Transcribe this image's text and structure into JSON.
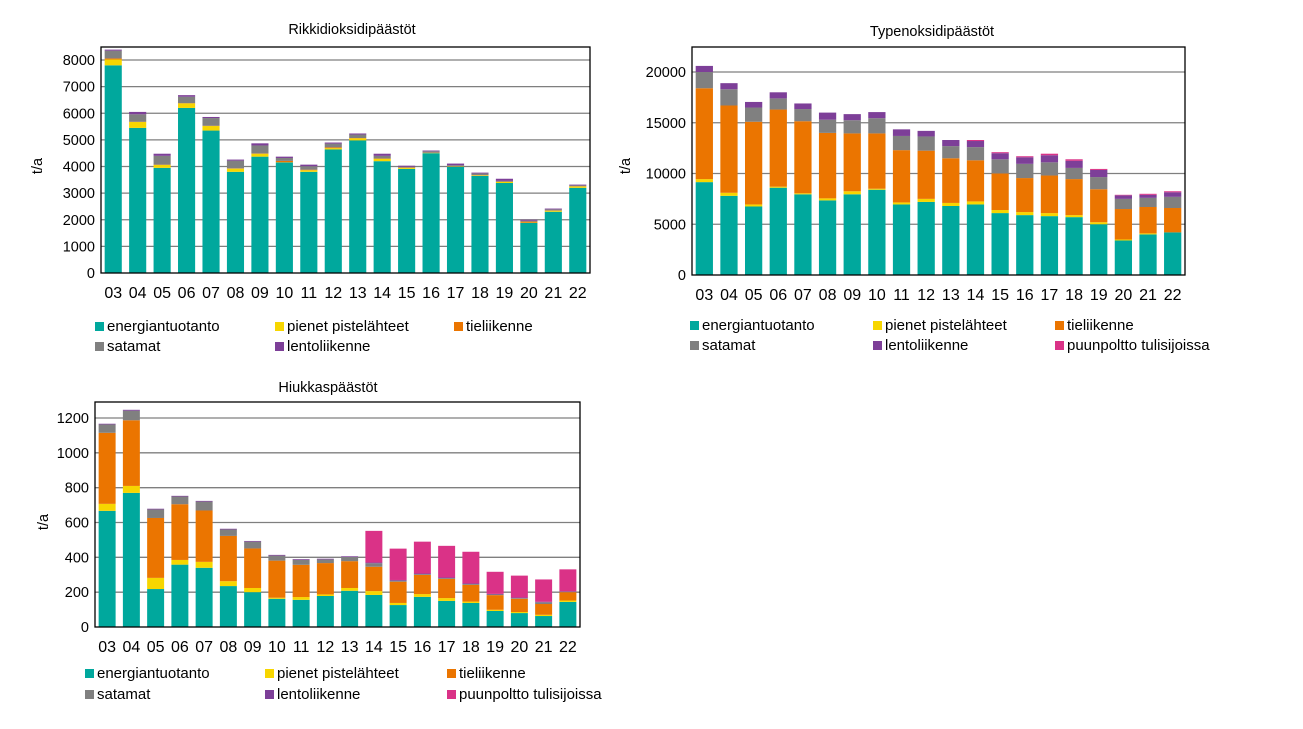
{
  "colors": {
    "energiantuotanto": "#00A89D",
    "pienet_pistelahteet": "#F7D600",
    "tieliikenne": "#EB7500",
    "satamat": "#808080",
    "lentoliikenne": "#7D3F98",
    "puunpoltto": "#DA3287"
  },
  "chart_data": [
    {
      "id": "so2",
      "type": "bar",
      "stacked": true,
      "title": "Rikkidioksidipäästöt",
      "xlabel": "",
      "ylabel": "t/a",
      "ylim": [
        0,
        8400
      ],
      "yticks": [
        0,
        1000,
        2000,
        3000,
        4000,
        5000,
        6000,
        7000,
        8000
      ],
      "grid": true,
      "legend": "bottom",
      "categories": [
        "03",
        "04",
        "05",
        "06",
        "07",
        "08",
        "09",
        "10",
        "11",
        "12",
        "13",
        "14",
        "15",
        "16",
        "17",
        "18",
        "19",
        "20",
        "21",
        "22"
      ],
      "series": [
        {
          "name": "energiantuotanto",
          "color_key": "energiantuotanto",
          "values": [
            7800,
            5450,
            3950,
            6200,
            5350,
            3800,
            4370,
            4150,
            3800,
            4640,
            4980,
            4200,
            3910,
            4500,
            3990,
            3650,
            3380,
            1880,
            2300,
            3200
          ]
        },
        {
          "name": "pienet pistelähteet",
          "color_key": "pienet_pistelahteet",
          "values": [
            220,
            220,
            110,
            170,
            170,
            120,
            110,
            10,
            60,
            50,
            80,
            90,
            40,
            10,
            10,
            20,
            40,
            10,
            40,
            50
          ]
        },
        {
          "name": "tieliikenne",
          "color_key": "tieliikenne",
          "values": [
            40,
            10,
            10,
            10,
            10,
            10,
            10,
            50,
            20,
            30,
            10,
            10,
            10,
            10,
            10,
            10,
            10,
            40,
            10,
            10
          ]
        },
        {
          "name": "satamat",
          "color_key": "satamat",
          "values": [
            290,
            280,
            330,
            240,
            290,
            290,
            300,
            110,
            130,
            140,
            130,
            100,
            30,
            50,
            40,
            60,
            30,
            30,
            40,
            30
          ]
        },
        {
          "name": "lentoliikenne",
          "color_key": "lentoliikenne",
          "values": [
            40,
            90,
            80,
            60,
            40,
            40,
            80,
            50,
            60,
            40,
            40,
            80,
            40,
            30,
            60,
            30,
            80,
            40,
            30,
            30
          ]
        }
      ]
    },
    {
      "id": "nox",
      "type": "bar",
      "stacked": true,
      "title": "Typenoksidipäästöt",
      "xlabel": "",
      "ylabel": "t/a",
      "ylim": [
        0,
        22000
      ],
      "yticks": [
        0,
        5000,
        10000,
        15000,
        20000
      ],
      "grid": true,
      "legend": "bottom",
      "categories": [
        "03",
        "04",
        "05",
        "06",
        "07",
        "08",
        "09",
        "10",
        "11",
        "12",
        "13",
        "14",
        "15",
        "16",
        "17",
        "18",
        "19",
        "20",
        "21",
        "22"
      ],
      "series": [
        {
          "name": "energiantuotanto",
          "color_key": "energiantuotanto",
          "values": [
            9150,
            7800,
            6750,
            8600,
            7950,
            7350,
            7950,
            8400,
            6950,
            7200,
            6800,
            6950,
            6100,
            5900,
            5800,
            5700,
            5000,
            3400,
            4000,
            4200
          ]
        },
        {
          "name": "pienet pistelähteet",
          "color_key": "pienet_pistelahteet",
          "values": [
            300,
            300,
            200,
            100,
            100,
            200,
            300,
            100,
            200,
            300,
            300,
            300,
            300,
            300,
            300,
            200,
            200,
            100,
            100,
            0
          ]
        },
        {
          "name": "tieliikenne",
          "color_key": "tieliikenne",
          "values": [
            8950,
            8600,
            8150,
            7600,
            7100,
            6450,
            5700,
            5450,
            5150,
            4750,
            4400,
            4050,
            3600,
            3350,
            3700,
            3550,
            3250,
            3000,
            2600,
            2400
          ]
        },
        {
          "name": "satamat",
          "color_key": "satamat",
          "values": [
            1600,
            1600,
            1400,
            1100,
            1200,
            1300,
            1300,
            1500,
            1400,
            1400,
            1200,
            1300,
            1400,
            1400,
            1300,
            1100,
            1200,
            1000,
            900,
            1100
          ]
        },
        {
          "name": "lentoliikenne",
          "color_key": "lentoliikenne",
          "values": [
            600,
            600,
            550,
            600,
            550,
            700,
            600,
            600,
            650,
            550,
            600,
            600,
            600,
            650,
            700,
            700,
            700,
            350,
            300,
            450
          ]
        },
        {
          "name": "puunpoltto tulisijoissa",
          "color_key": "puunpoltto",
          "values": [
            0,
            0,
            0,
            0,
            0,
            0,
            0,
            0,
            0,
            0,
            0,
            100,
            100,
            100,
            150,
            150,
            100,
            50,
            100,
            100
          ]
        }
      ]
    },
    {
      "id": "pm",
      "type": "bar",
      "stacked": true,
      "title": "Hiukkaspäästöt",
      "xlabel": "",
      "ylabel": "t/a",
      "ylim": [
        0,
        1300
      ],
      "yticks": [
        0,
        200,
        400,
        600,
        800,
        1000,
        1200
      ],
      "grid": true,
      "legend": "bottom",
      "categories": [
        "03",
        "04",
        "05",
        "06",
        "07",
        "08",
        "09",
        "10",
        "11",
        "12",
        "13",
        "14",
        "15",
        "16",
        "17",
        "18",
        "19",
        "20",
        "21",
        "22"
      ],
      "series": [
        {
          "name": "energiantuotanto",
          "color_key": "energiantuotanto",
          "values": [
            667,
            770,
            218,
            358,
            340,
            235,
            200,
            162,
            156,
            178,
            208,
            184,
            126,
            173,
            150,
            138,
            92,
            80,
            63,
            144
          ]
        },
        {
          "name": "pienet pistelähteet",
          "color_key": "pienet_pistelahteet",
          "values": [
            40,
            40,
            64,
            27,
            34,
            28,
            24,
            6,
            16,
            9,
            16,
            22,
            12,
            16,
            16,
            8,
            7,
            6,
            7,
            8
          ]
        },
        {
          "name": "tieliikenne",
          "color_key": "tieliikenne",
          "values": [
            408,
            377,
            344,
            320,
            295,
            260,
            227,
            213,
            185,
            180,
            154,
            140,
            122,
            110,
            110,
            96,
            84,
            76,
            62,
            48
          ]
        },
        {
          "name": "satamat",
          "color_key": "satamat",
          "values": [
            48,
            55,
            49,
            44,
            51,
            37,
            39,
            29,
            29,
            21,
            24,
            20,
            6,
            5,
            5,
            5,
            4,
            4,
            10,
            2
          ]
        },
        {
          "name": "lentoliikenne",
          "color_key": "lentoliikenne",
          "values": [
            4,
            5,
            4,
            4,
            4,
            4,
            4,
            4,
            4,
            4,
            4,
            4,
            4,
            3,
            3,
            3,
            3,
            3,
            3,
            3
          ]
        },
        {
          "name": "puunpoltto tulisijoissa",
          "color_key": "puunpoltto",
          "values": [
            0,
            0,
            0,
            0,
            0,
            0,
            0,
            0,
            0,
            0,
            0,
            182,
            180,
            183,
            182,
            182,
            127,
            126,
            128,
            126
          ]
        }
      ]
    }
  ]
}
